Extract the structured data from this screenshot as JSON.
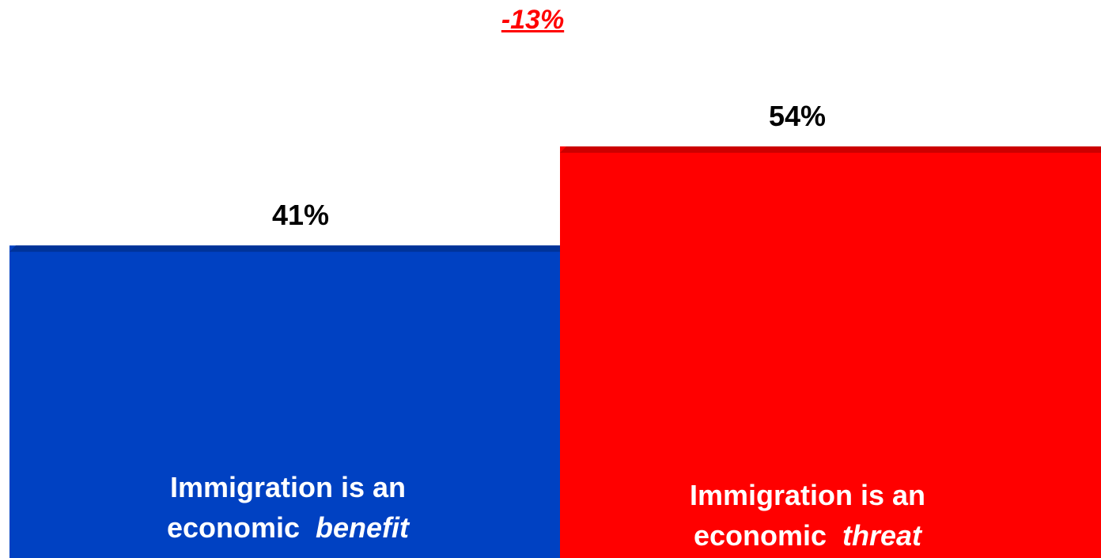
{
  "chart_data": {
    "type": "bar",
    "difference_label": "-13%",
    "categories": [
      {
        "line1": "Immigration is an",
        "line2_plain": "economic",
        "line2_italic": "benefit"
      },
      {
        "line1": "Immigration is an",
        "line2_plain": "economic",
        "line2_italic": "threat"
      }
    ],
    "values": [
      41,
      54
    ],
    "value_labels": [
      "41%",
      "54%"
    ],
    "colors": [
      "#0041c2",
      "#ff0000"
    ],
    "top_colors": [
      "#003399",
      "#cc0000"
    ],
    "label_colors": [
      "#ffffff",
      "#ffffff"
    ],
    "value_label_color": "#000000",
    "difference_color": "#ff0000",
    "ylim": [
      0,
      54
    ],
    "grid": false,
    "legend": "none"
  }
}
